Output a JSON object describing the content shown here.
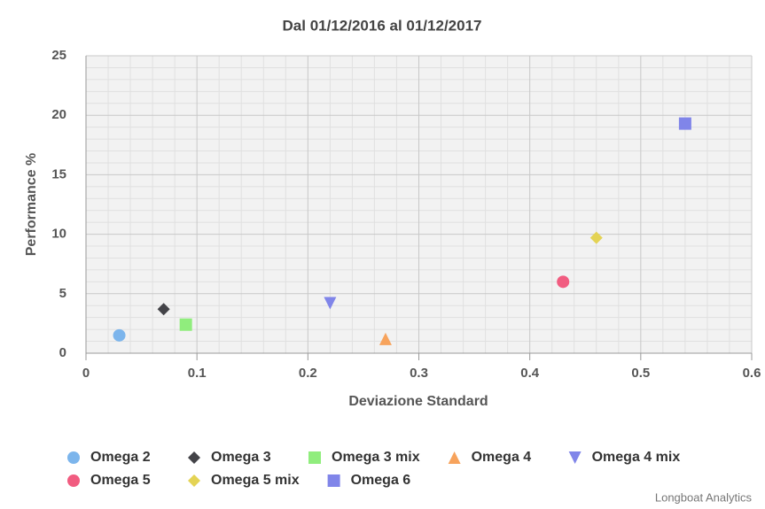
{
  "chart_data": {
    "type": "scatter",
    "title": "Dal 01/12/2016 al 01/12/2017",
    "x_label": "Deviazione Standard",
    "y_label": "Performance %",
    "credit": "Longboat Analytics",
    "xlim": [
      0,
      0.6
    ],
    "xticks": [
      0,
      0.1,
      0.2,
      0.3,
      0.4,
      0.5,
      0.6
    ],
    "ylim": [
      0,
      25
    ],
    "yticks": [
      0,
      5,
      10,
      15,
      20,
      25
    ],
    "grid": true,
    "legend": "bottom",
    "series": [
      {
        "name": "Omega 2",
        "color": "#7cb5ec",
        "marker": "circle",
        "x": [
          0.03
        ],
        "values": [
          1.5
        ]
      },
      {
        "name": "Omega 3",
        "color": "#434348",
        "marker": "diamond",
        "x": [
          0.07
        ],
        "values": [
          3.7
        ]
      },
      {
        "name": "Omega 3 mix",
        "color": "#90ed7d",
        "marker": "square",
        "x": [
          0.09
        ],
        "values": [
          2.4
        ]
      },
      {
        "name": "Omega 4",
        "color": "#f7a35c",
        "marker": "triangle",
        "x": [
          0.27
        ],
        "values": [
          1.2
        ]
      },
      {
        "name": "Omega 4 mix",
        "color": "#8085e9",
        "marker": "triangle-down",
        "x": [
          0.22
        ],
        "values": [
          4.2
        ]
      },
      {
        "name": "Omega 5",
        "color": "#f15c80",
        "marker": "circle",
        "x": [
          0.43
        ],
        "values": [
          6.0
        ]
      },
      {
        "name": "Omega 5 mix",
        "color": "#e4d354",
        "marker": "diamond",
        "x": [
          0.46
        ],
        "values": [
          9.7
        ]
      },
      {
        "name": "Omega 6",
        "color": "#8085e9",
        "marker": "square",
        "x": [
          0.54
        ],
        "values": [
          19.3
        ]
      }
    ]
  }
}
